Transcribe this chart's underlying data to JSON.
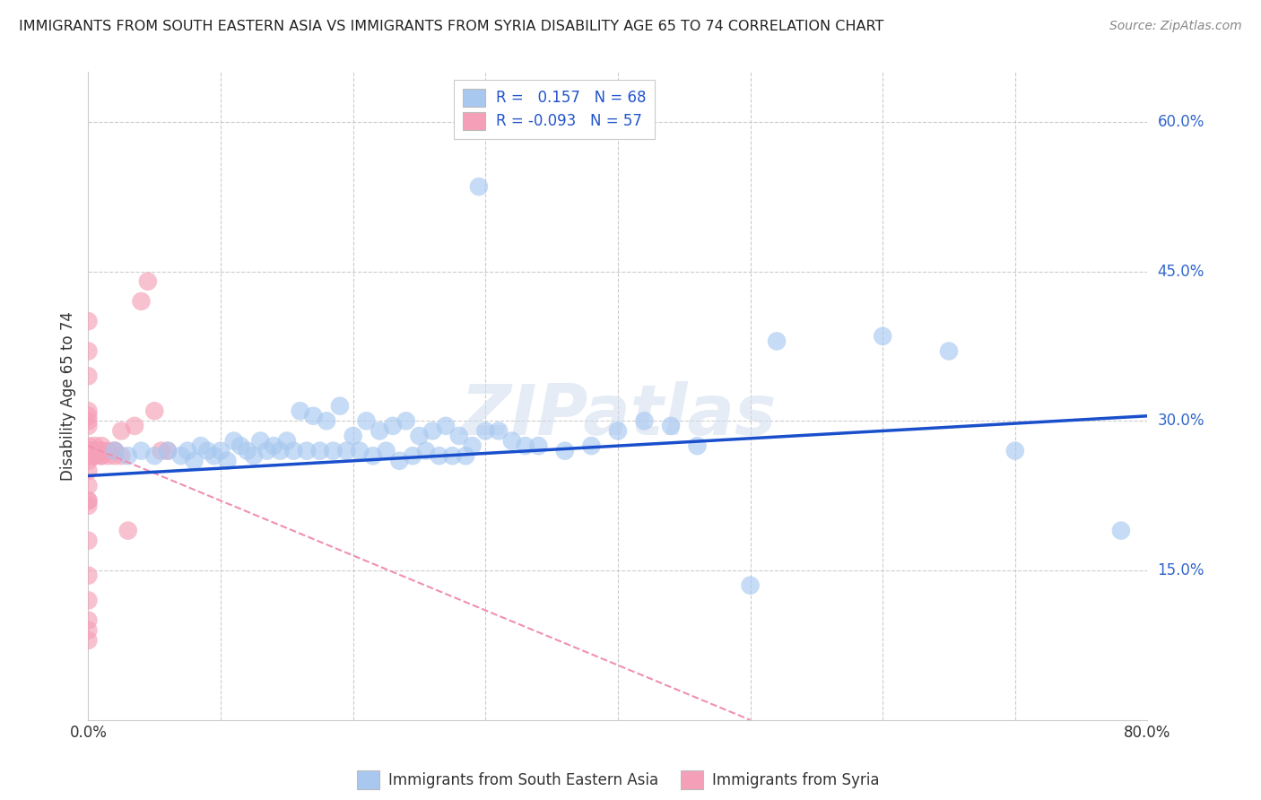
{
  "title": "IMMIGRANTS FROM SOUTH EASTERN ASIA VS IMMIGRANTS FROM SYRIA DISABILITY AGE 65 TO 74 CORRELATION CHART",
  "source": "Source: ZipAtlas.com",
  "ylabel": "Disability Age 65 to 74",
  "xlim": [
    0.0,
    0.8
  ],
  "ylim": [
    0.0,
    0.65
  ],
  "ytick_positions": [
    0.15,
    0.3,
    0.45,
    0.6
  ],
  "ytick_labels": [
    "15.0%",
    "30.0%",
    "45.0%",
    "60.0%"
  ],
  "blue_R": 0.157,
  "blue_N": 68,
  "pink_R": -0.093,
  "pink_N": 57,
  "blue_color": "#a8c8f0",
  "pink_color": "#f5a0b8",
  "blue_line_color": "#1a4fcc",
  "pink_line_color": "#f090b0",
  "watermark": "ZIPatlas",
  "legend_label_blue": "Immigrants from South Eastern Asia",
  "legend_label_pink": "Immigrants from Syria",
  "blue_scatter_x": [
    0.295,
    0.02,
    0.03,
    0.04,
    0.05,
    0.06,
    0.07,
    0.075,
    0.08,
    0.085,
    0.09,
    0.095,
    0.1,
    0.105,
    0.11,
    0.115,
    0.12,
    0.125,
    0.13,
    0.135,
    0.14,
    0.145,
    0.15,
    0.155,
    0.16,
    0.165,
    0.17,
    0.175,
    0.18,
    0.185,
    0.19,
    0.195,
    0.2,
    0.205,
    0.21,
    0.215,
    0.22,
    0.225,
    0.23,
    0.235,
    0.24,
    0.245,
    0.25,
    0.255,
    0.26,
    0.265,
    0.27,
    0.275,
    0.28,
    0.285,
    0.29,
    0.3,
    0.31,
    0.32,
    0.33,
    0.34,
    0.36,
    0.38,
    0.4,
    0.42,
    0.44,
    0.46,
    0.5,
    0.52,
    0.6,
    0.65,
    0.7,
    0.78
  ],
  "blue_scatter_y": [
    0.535,
    0.27,
    0.265,
    0.27,
    0.265,
    0.27,
    0.265,
    0.27,
    0.26,
    0.275,
    0.27,
    0.265,
    0.27,
    0.26,
    0.28,
    0.275,
    0.27,
    0.265,
    0.28,
    0.27,
    0.275,
    0.27,
    0.28,
    0.27,
    0.31,
    0.27,
    0.305,
    0.27,
    0.3,
    0.27,
    0.315,
    0.27,
    0.285,
    0.27,
    0.3,
    0.265,
    0.29,
    0.27,
    0.295,
    0.26,
    0.3,
    0.265,
    0.285,
    0.27,
    0.29,
    0.265,
    0.295,
    0.265,
    0.285,
    0.265,
    0.275,
    0.29,
    0.29,
    0.28,
    0.275,
    0.275,
    0.27,
    0.275,
    0.29,
    0.3,
    0.295,
    0.275,
    0.135,
    0.38,
    0.385,
    0.37,
    0.27,
    0.19
  ],
  "pink_scatter_x": [
    0.0,
    0.0,
    0.0,
    0.0,
    0.0,
    0.0,
    0.0,
    0.0,
    0.0,
    0.0,
    0.0,
    0.0,
    0.0,
    0.0,
    0.0,
    0.005,
    0.005,
    0.005,
    0.005,
    0.005,
    0.005,
    0.005,
    0.01,
    0.01,
    0.01,
    0.01,
    0.01,
    0.015,
    0.015,
    0.02,
    0.02,
    0.02,
    0.025,
    0.025,
    0.03,
    0.035,
    0.04,
    0.045,
    0.05,
    0.055,
    0.06,
    0.0,
    0.0,
    0.0,
    0.0,
    0.0,
    0.0,
    0.0,
    0.0,
    0.0,
    0.0,
    0.0,
    0.0,
    0.0,
    0.0,
    0.0,
    0.0
  ],
  "pink_scatter_y": [
    0.27,
    0.27,
    0.265,
    0.27,
    0.265,
    0.27,
    0.265,
    0.26,
    0.275,
    0.27,
    0.27,
    0.27,
    0.27,
    0.31,
    0.305,
    0.265,
    0.27,
    0.275,
    0.265,
    0.27,
    0.265,
    0.27,
    0.265,
    0.27,
    0.275,
    0.265,
    0.27,
    0.27,
    0.265,
    0.27,
    0.27,
    0.265,
    0.265,
    0.29,
    0.19,
    0.295,
    0.42,
    0.44,
    0.31,
    0.27,
    0.27,
    0.4,
    0.37,
    0.345,
    0.22,
    0.18,
    0.145,
    0.12,
    0.1,
    0.09,
    0.08,
    0.3,
    0.295,
    0.25,
    0.235,
    0.22,
    0.215
  ],
  "blue_line_x": [
    0.0,
    0.8
  ],
  "blue_line_y": [
    0.245,
    0.305
  ],
  "pink_line_x": [
    0.0,
    0.5
  ],
  "pink_line_y": [
    0.275,
    0.0
  ]
}
